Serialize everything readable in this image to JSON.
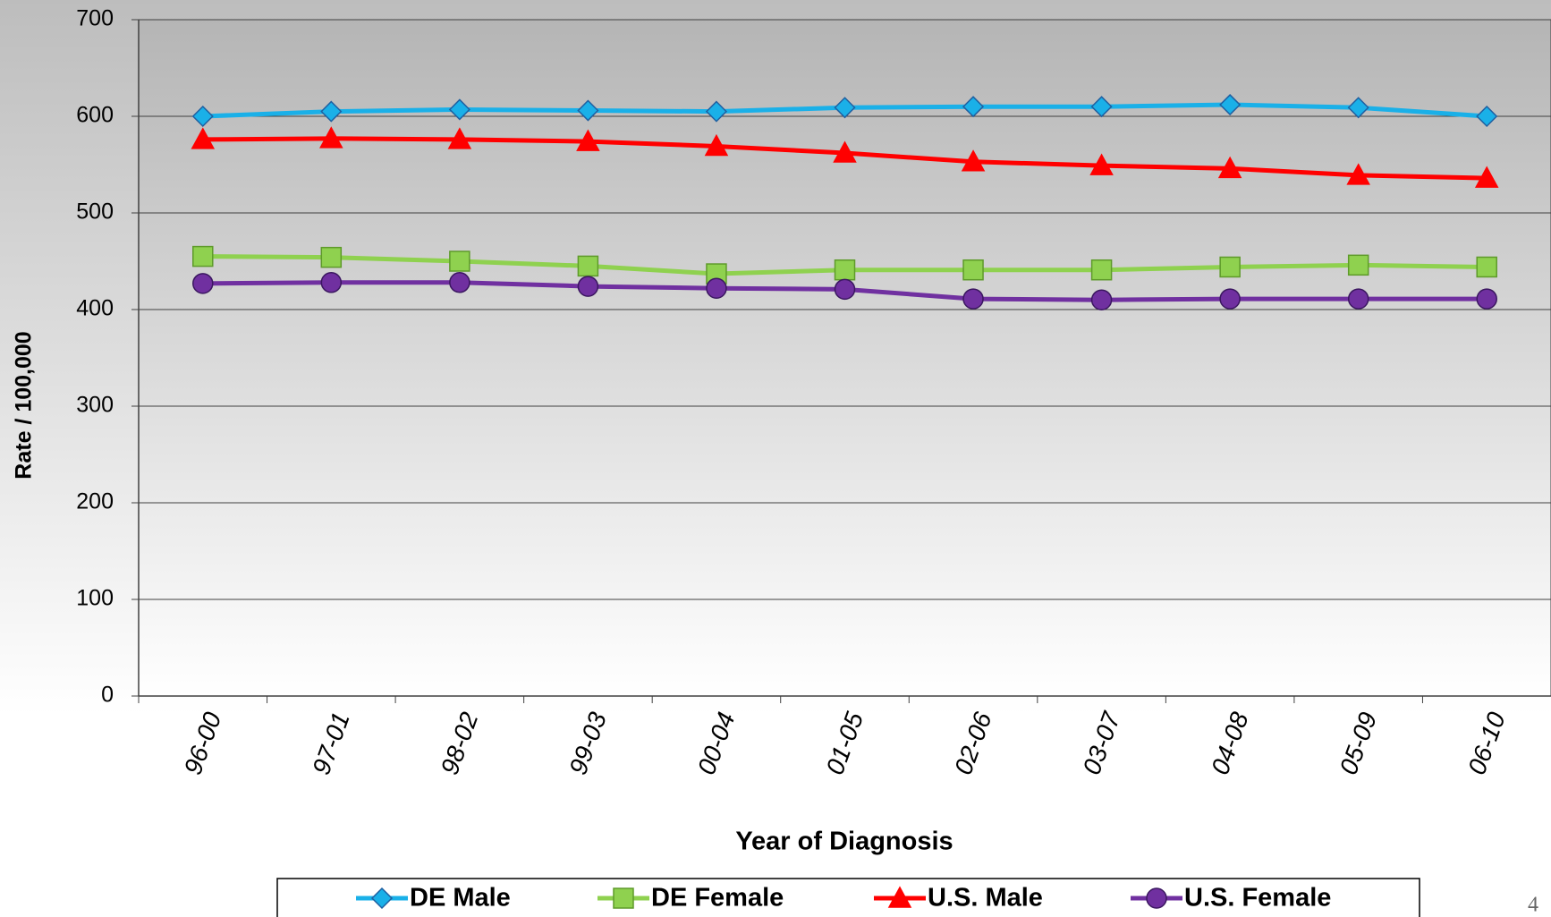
{
  "chart_data": {
    "type": "line",
    "x_label": "Year of Diagnosis",
    "y_label": "Rate / 100,000",
    "categories": [
      "96-00",
      "97-01",
      "98-02",
      "99-03",
      "00-04",
      "01-05",
      "02-06",
      "03-07",
      "04-08",
      "05-09",
      "06-10"
    ],
    "series": [
      {
        "name": "DE Male",
        "color": "#1ab0e8",
        "marker": "diamond",
        "values": [
          600,
          605,
          607,
          606,
          605,
          609,
          610,
          610,
          612,
          609,
          600
        ]
      },
      {
        "name": "DE Female",
        "color": "#8fd14f",
        "marker": "square",
        "values": [
          455,
          454,
          450,
          445,
          437,
          441,
          441,
          441,
          444,
          446,
          444
        ]
      },
      {
        "name": "U.S. Male",
        "color": "#ff0000",
        "marker": "triangle",
        "values": [
          576,
          577,
          576,
          574,
          569,
          562,
          553,
          549,
          546,
          539,
          536
        ]
      },
      {
        "name": "U.S. Female",
        "color": "#7030a0",
        "marker": "circle",
        "values": [
          427,
          428,
          428,
          424,
          422,
          421,
          411,
          410,
          411,
          411,
          411
        ]
      }
    ],
    "ylim": [
      0,
      700
    ],
    "yticks": [
      0,
      100,
      200,
      300,
      400,
      500,
      600,
      700
    ],
    "grid": true,
    "legend": "bottom",
    "page_number": "4"
  }
}
